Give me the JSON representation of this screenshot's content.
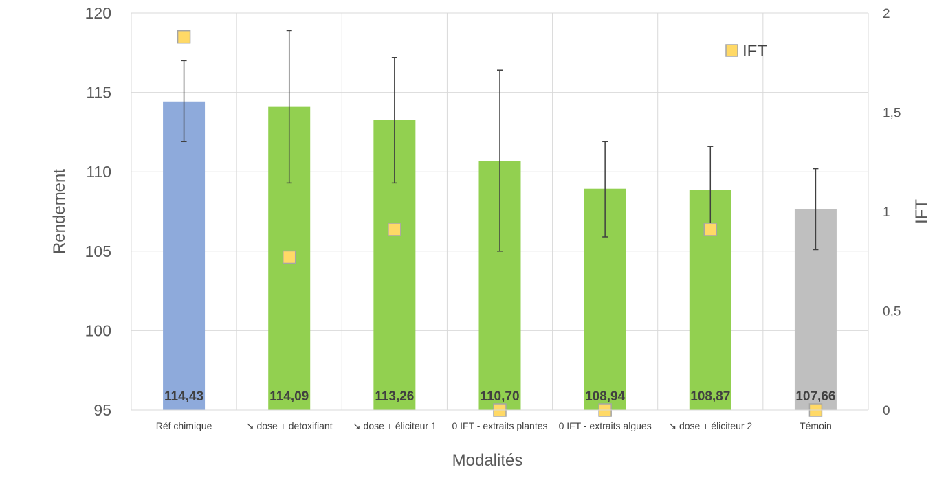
{
  "chart_data": {
    "type": "bar",
    "title": "",
    "xlabel": "Modalités",
    "ylabel": "Rendement",
    "y2label": "IFT",
    "categories": [
      "Réf chimique",
      "↘ dose + detoxifiant",
      "↘ dose + éliciteur 1",
      "0 IFT - extraits plantes",
      "0 IFT - extraits algues",
      "↘ dose + éliciteur 2",
      "Témoin"
    ],
    "ylim": [
      95,
      120
    ],
    "yticks": [
      "95",
      "100",
      "105",
      "110",
      "115",
      "120"
    ],
    "y2lim": [
      0,
      2
    ],
    "y2ticks": [
      "0",
      "0,5",
      "1",
      "1,5",
      "2"
    ],
    "grid": true,
    "bars": {
      "values": [
        114.43,
        114.09,
        113.26,
        110.7,
        108.94,
        108.87,
        107.66
      ],
      "labels": [
        "114,43",
        "114,09",
        "113,26",
        "110,70",
        "108,94",
        "108,87",
        "107,66"
      ],
      "colors": [
        "#8eaadb",
        "#92d050",
        "#92d050",
        "#92d050",
        "#92d050",
        "#92d050",
        "#bfbfbf"
      ],
      "error_low": [
        111.9,
        109.3,
        109.3,
        105.0,
        105.9,
        106.4,
        105.1
      ],
      "error_high": [
        117.0,
        118.9,
        117.2,
        116.4,
        111.9,
        111.6,
        110.2
      ]
    },
    "series": [
      {
        "name": "IFT",
        "axis": "secondary",
        "marker": "square",
        "color": "#ffd966",
        "values": [
          1.88,
          0.77,
          0.91,
          0.0,
          0.0,
          0.91,
          0.0
        ]
      }
    ],
    "legend": {
      "position": "top-right"
    }
  }
}
